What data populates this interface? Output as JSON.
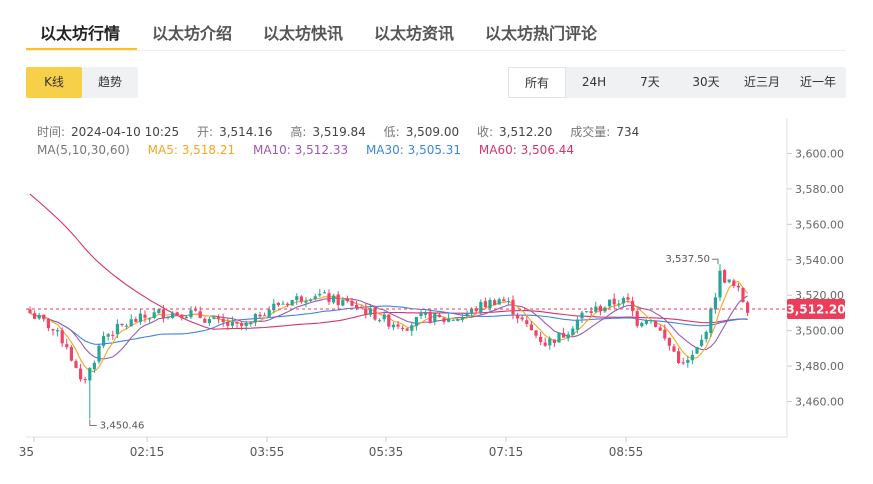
{
  "tabs": [
    {
      "label": "以太坊行情",
      "active": true
    },
    {
      "label": "以太坊介绍"
    },
    {
      "label": "以太坊快讯"
    },
    {
      "label": "以太坊资讯"
    },
    {
      "label": "以太坊热门评论"
    }
  ],
  "modes": [
    {
      "label": "K线",
      "active": true
    },
    {
      "label": "趋势"
    }
  ],
  "ranges": [
    {
      "label": "所有",
      "active": true
    },
    {
      "label": "24H"
    },
    {
      "label": "7天"
    },
    {
      "label": "30天"
    },
    {
      "label": "近三月"
    },
    {
      "label": "近一年"
    }
  ],
  "info": {
    "time_label": "时间:",
    "time_value": "2024-04-10 10:25",
    "open_label": "开:",
    "open_value": "3,514.16",
    "high_label": "高:",
    "high_value": "3,519.84",
    "low_label": "低:",
    "low_value": "3,509.00",
    "close_label": "收:",
    "close_value": "3,512.20",
    "volume_label": "成交量:",
    "volume_value": "734"
  },
  "ma": {
    "title": "MA(5,10,30,60)",
    "ma5_label": "MA5: 3,518.21",
    "ma10_label": "MA10: 3,512.33",
    "ma30_label": "MA30: 3,505.31",
    "ma60_label": "MA60: 3,506.44"
  },
  "colors": {
    "up": "#26a69a",
    "down": "#ef4466",
    "ma5": "#f5a623",
    "ma10": "#9b59b6",
    "ma30": "#3d86e0",
    "ma60": "#d6336c",
    "price_tag": "#ef3c5a"
  },
  "chart_data": {
    "type": "candlestick",
    "ylim": [
      3440,
      3620
    ],
    "y_ticks": [
      "3,600.00",
      "3,580.00",
      "3,560.00",
      "3,540.00",
      "3,520.00",
      "3,500.00",
      "3,480.00",
      "3,460.00"
    ],
    "x_ticks": [
      "35",
      "02:15",
      "03:55",
      "05:35",
      "07:15",
      "08:55"
    ],
    "current_price": 3512.2,
    "current_price_label": "3,512.20",
    "max_label": "3,537.50",
    "min_label": "3,450.46",
    "max_value": 3537.5,
    "min_value": 3450.46
  }
}
